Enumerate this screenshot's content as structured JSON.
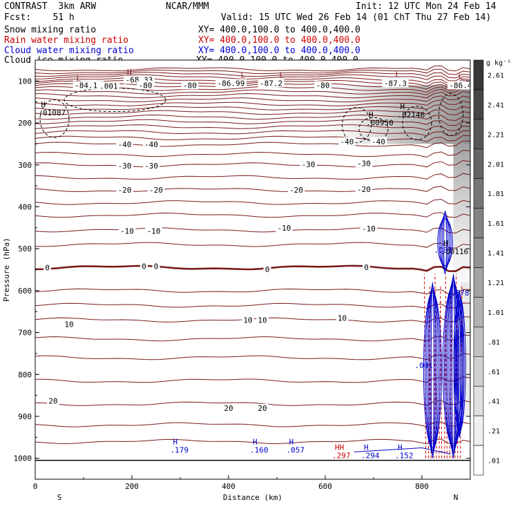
{
  "header": {
    "left_line1": "CONTRAST  3km ARW",
    "center_line1": "NCAR/MMM",
    "right_line1": "Init: 12 UTC Mon 24 Feb 14",
    "fcst_line": "Fcst:    51 h",
    "valid_line": "Valid: 15 UTC Wed 26 Feb 14 (01 ChT Thu 27 Feb 14)",
    "fields": [
      {
        "name": "Snow mixing ratio",
        "xy": "XY= 400.0,100.0 to 400.0,400.0",
        "color": "#000000"
      },
      {
        "name": "Rain water mixing ratio",
        "xy": "XY= 400.0,100.0 to 400.0,400.0",
        "color": "#cc0000"
      },
      {
        "name": "Cloud water mixing ratio",
        "xy": "XY= 400.0,100.0 to 400.0,400.0",
        "color": "#0000cc"
      },
      {
        "name": "Cloud ice mixing ratio",
        "xy": "XY= 400.0,100.0 to 400.0,400.0",
        "color": "#000000"
      }
    ]
  },
  "chart_data": {
    "type": "contour",
    "xlabel": "Distance (km)",
    "ylabel": "Pressure (hPa)",
    "xlim": [
      0,
      900
    ],
    "ylim": [
      1050,
      50
    ],
    "x_ticks": [
      0,
      200,
      400,
      600,
      800
    ],
    "y_ticks": [
      100,
      200,
      300,
      400,
      500,
      600,
      700,
      800,
      900,
      1000
    ],
    "x_end_labels": {
      "left": "S",
      "right": "N"
    },
    "colorbar": {
      "unit": "g kg⁻¹",
      "labels": [
        "2.61",
        "2.41",
        "2.21",
        "2.01",
        "1.81",
        "1.61",
        "1.41",
        "1.21",
        "1.01",
        ".81",
        ".61",
        ".41",
        ".21",
        ".01"
      ]
    },
    "temperature_labels": [
      {
        "text": "-68.33",
        "x": 215,
        "p": 97
      },
      {
        "text": "-84.16",
        "x": 110,
        "p": 110
      },
      {
        "text": ".001",
        "x": 152,
        "p": 112
      },
      {
        "text": "-80",
        "x": 228,
        "p": 110
      },
      {
        "text": "-80",
        "x": 320,
        "p": 110
      },
      {
        "text": "-86.99",
        "x": 405,
        "p": 105
      },
      {
        "text": "-87.2",
        "x": 488,
        "p": 105
      },
      {
        "text": "-80",
        "x": 595,
        "p": 110
      },
      {
        "text": "-87.3",
        "x": 745,
        "p": 105
      },
      {
        "text": "-86.4",
        "x": 880,
        "p": 110
      },
      {
        "text": "-40",
        "x": 185,
        "p": 251
      },
      {
        "text": "-40",
        "x": 240,
        "p": 251
      },
      {
        "text": "-40",
        "x": 645,
        "p": 244
      },
      {
        "text": "-40",
        "x": 710,
        "p": 244
      },
      {
        "text": "-30",
        "x": 185,
        "p": 302
      },
      {
        "text": "-30",
        "x": 240,
        "p": 302
      },
      {
        "text": "-30",
        "x": 565,
        "p": 299
      },
      {
        "text": "-30",
        "x": 680,
        "p": 296
      },
      {
        "text": "-20",
        "x": 185,
        "p": 360
      },
      {
        "text": "-20",
        "x": 250,
        "p": 360
      },
      {
        "text": "-20",
        "x": 540,
        "p": 360
      },
      {
        "text": "-20",
        "x": 680,
        "p": 358
      },
      {
        "text": "-10",
        "x": 190,
        "p": 458
      },
      {
        "text": "-10",
        "x": 245,
        "p": 458
      },
      {
        "text": "-10",
        "x": 515,
        "p": 450
      },
      {
        "text": "-10",
        "x": 690,
        "p": 452
      },
      {
        "text": "0",
        "x": 25,
        "p": 545
      },
      {
        "text": "0",
        "x": 225,
        "p": 542
      },
      {
        "text": "0",
        "x": 250,
        "p": 542
      },
      {
        "text": "0",
        "x": 480,
        "p": 549
      },
      {
        "text": "0",
        "x": 685,
        "p": 544
      },
      {
        "text": "10",
        "x": 70,
        "p": 680
      },
      {
        "text": "10",
        "x": 440,
        "p": 670
      },
      {
        "text": "10",
        "x": 470,
        "p": 670
      },
      {
        "text": "10",
        "x": 635,
        "p": 665
      },
      {
        "text": "20",
        "x": 37,
        "p": 863
      },
      {
        "text": "20",
        "x": 400,
        "p": 880
      },
      {
        "text": "20",
        "x": 470,
        "p": 880
      }
    ],
    "isotherm_levels": [
      {
        "p": 97,
        "values": [
          -68.33
        ]
      },
      {
        "p": 110,
        "values": [
          -84.16,
          -80,
          -80,
          -86.99,
          -87.2,
          -80,
          -87.3,
          -86.4
        ]
      },
      {
        "p": 251,
        "values": [
          -40,
          -40
        ]
      },
      {
        "p": 300,
        "values": [
          -30,
          -30,
          -30,
          -30
        ]
      },
      {
        "p": 360,
        "values": [
          -20,
          -20,
          -20,
          -20
        ]
      },
      {
        "p": 455,
        "values": [
          -10,
          -10,
          -10,
          -10
        ]
      },
      {
        "p": 545,
        "values": [
          0,
          0,
          0,
          0,
          0
        ]
      },
      {
        "p": 670,
        "values": [
          10,
          10,
          10,
          10
        ]
      },
      {
        "p": 870,
        "values": [
          20,
          20,
          20
        ]
      }
    ],
    "extrema_labels": [
      {
        "kind": "H",
        "text": "",
        "x": 190,
        "p": 85,
        "color": "#7a1a1a"
      },
      {
        "kind": "L",
        "text": "",
        "x": 85,
        "p": 100,
        "color": "#7a1a1a"
      },
      {
        "kind": "L",
        "text": "",
        "x": 425,
        "p": 92,
        "color": "#7a1a1a"
      },
      {
        "kind": "L",
        "text": "",
        "x": 505,
        "p": 92,
        "color": "#7a1a1a"
      },
      {
        "kind": "L",
        "text": "",
        "x": 745,
        "p": 90,
        "color": "#7a1a1a"
      },
      {
        "kind": "L",
        "text": "",
        "x": 875,
        "p": 95,
        "color": "#7a1a1a"
      },
      {
        "kind": "H",
        "text": ".01087",
        "x": 12,
        "p": 162,
        "color": "#000000"
      },
      {
        "kind": "H",
        "text": ".00950",
        "x": 690,
        "p": 186,
        "color": "#000000"
      },
      {
        "kind": "H",
        "text": ".02146",
        "x": 755,
        "p": 167,
        "color": "#000000"
      },
      {
        "kind": "H",
        "text": ".00116",
        "x": 845,
        "p": 493,
        "color": "#000000"
      },
      {
        "kind": "H",
        "text": ".179",
        "x": 285,
        "p": 967,
        "color": "#0000cc"
      },
      {
        "kind": "H",
        "text": ".160",
        "x": 450,
        "p": 967,
        "color": "#0000cc"
      },
      {
        "kind": "H",
        "text": ".057",
        "x": 525,
        "p": 967,
        "color": "#0000cc"
      },
      {
        "kind": "HH",
        "text": ".297",
        "x": 620,
        "p": 980,
        "color": "#cc0000"
      },
      {
        "kind": "H",
        "text": ".294",
        "x": 680,
        "p": 980,
        "color": "#0000cc"
      },
      {
        "kind": "H",
        "text": ".152",
        "x": 750,
        "p": 980,
        "color": "#0000cc"
      }
    ],
    "misc_labels": [
      {
        "text": ".001",
        "x": 825,
        "p": 510,
        "color": "#0000cc"
      },
      {
        "text": ".001",
        "x": 785,
        "p": 785,
        "color": "#0000cc"
      },
      {
        "text": ".878",
        "x": 860,
        "p": 612,
        "color": "#0000cc"
      }
    ]
  }
}
